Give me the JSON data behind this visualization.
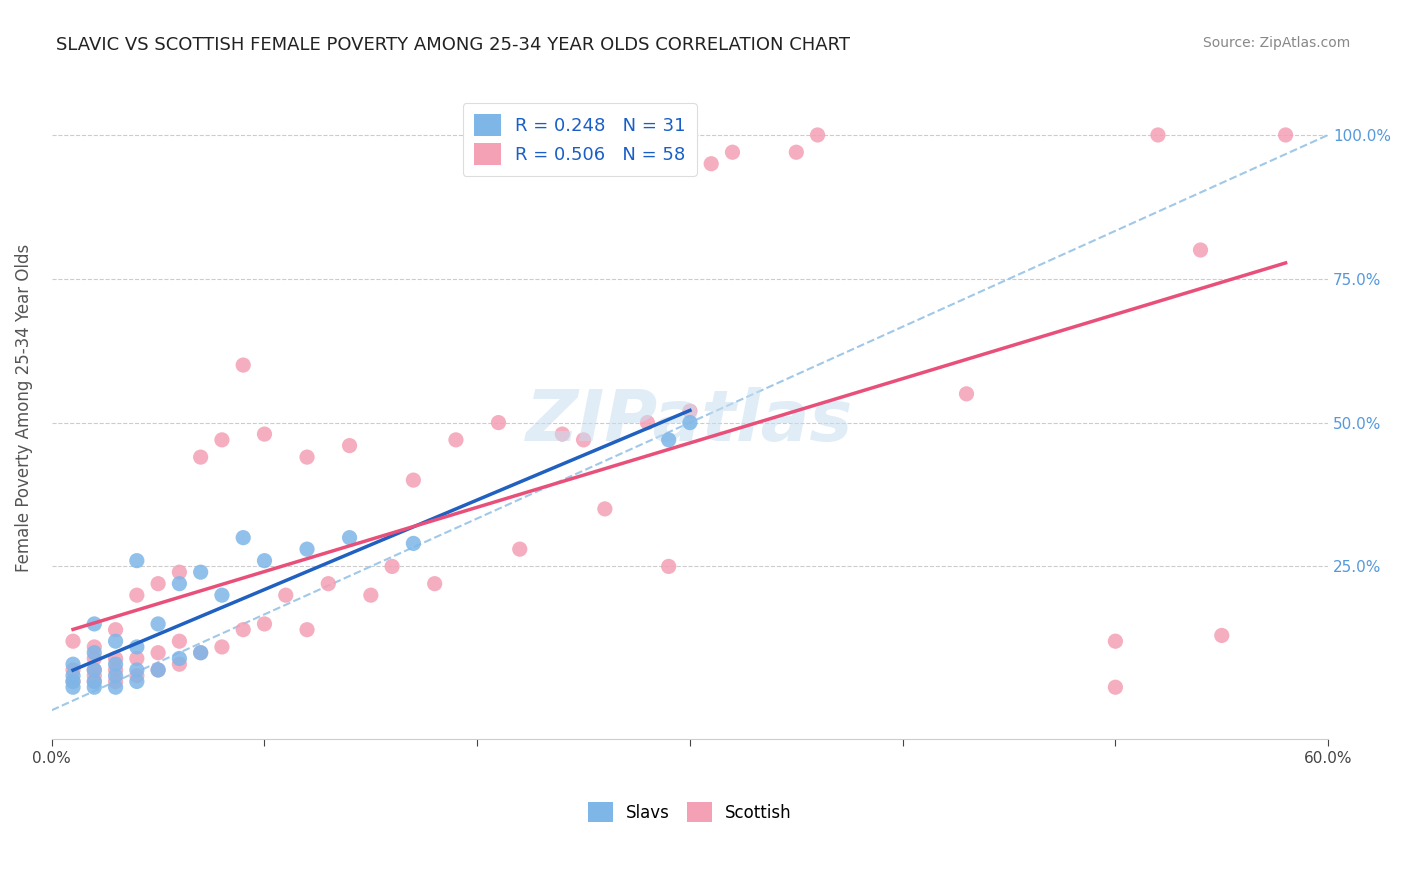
{
  "title": "SLAVIC VS SCOTTISH FEMALE POVERTY AMONG 25-34 YEAR OLDS CORRELATION CHART",
  "source": "Source: ZipAtlas.com",
  "ylabel": "Female Poverty Among 25-34 Year Olds",
  "xlim": [
    0.0,
    0.6
  ],
  "ylim": [
    -0.05,
    1.1
  ],
  "xticks": [
    0.0,
    0.1,
    0.2,
    0.3,
    0.4,
    0.5,
    0.6
  ],
  "xticklabels": [
    "0.0%",
    "",
    "",
    "",
    "",
    "",
    "60.0%"
  ],
  "yticks": [
    0.0,
    0.25,
    0.5,
    0.75,
    1.0
  ],
  "right_yticks": [
    0.0,
    0.25,
    0.5,
    0.75,
    1.0
  ],
  "right_yticklabels": [
    "",
    "25.0%",
    "50.0%",
    "75.0%",
    "100.0%"
  ],
  "slavs_color": "#7eb6e8",
  "scottish_color": "#f4a0b5",
  "slavs_line_color": "#2060c0",
  "scottish_line_color": "#e8507a",
  "dashed_line_color": "#a0c8e8",
  "legend_text_color": "#1a5fc8",
  "slavs_R": 0.248,
  "slavs_N": 31,
  "scottish_R": 0.506,
  "scottish_N": 58,
  "watermark": "ZIPatlas",
  "slavs_x": [
    0.01,
    0.01,
    0.01,
    0.01,
    0.02,
    0.02,
    0.02,
    0.02,
    0.02,
    0.03,
    0.03,
    0.03,
    0.03,
    0.04,
    0.04,
    0.04,
    0.04,
    0.05,
    0.05,
    0.06,
    0.06,
    0.07,
    0.07,
    0.08,
    0.09,
    0.1,
    0.12,
    0.14,
    0.17,
    0.29,
    0.3
  ],
  "slavs_y": [
    0.04,
    0.05,
    0.06,
    0.08,
    0.04,
    0.05,
    0.07,
    0.1,
    0.15,
    0.04,
    0.06,
    0.08,
    0.12,
    0.05,
    0.07,
    0.11,
    0.26,
    0.07,
    0.15,
    0.09,
    0.22,
    0.1,
    0.24,
    0.2,
    0.3,
    0.26,
    0.28,
    0.3,
    0.29,
    0.47,
    0.5
  ],
  "scottish_x": [
    0.01,
    0.01,
    0.01,
    0.02,
    0.02,
    0.02,
    0.02,
    0.02,
    0.03,
    0.03,
    0.03,
    0.03,
    0.04,
    0.04,
    0.04,
    0.05,
    0.05,
    0.05,
    0.06,
    0.06,
    0.06,
    0.07,
    0.07,
    0.08,
    0.08,
    0.09,
    0.09,
    0.1,
    0.1,
    0.11,
    0.12,
    0.12,
    0.13,
    0.14,
    0.15,
    0.16,
    0.17,
    0.18,
    0.19,
    0.21,
    0.22,
    0.24,
    0.25,
    0.26,
    0.28,
    0.29,
    0.3,
    0.31,
    0.32,
    0.35,
    0.36,
    0.43,
    0.5,
    0.5,
    0.52,
    0.54,
    0.55,
    0.58
  ],
  "scottish_y": [
    0.05,
    0.07,
    0.12,
    0.05,
    0.06,
    0.07,
    0.09,
    0.11,
    0.05,
    0.07,
    0.09,
    0.14,
    0.06,
    0.09,
    0.2,
    0.07,
    0.1,
    0.22,
    0.08,
    0.12,
    0.24,
    0.1,
    0.44,
    0.11,
    0.47,
    0.14,
    0.6,
    0.15,
    0.48,
    0.2,
    0.14,
    0.44,
    0.22,
    0.46,
    0.2,
    0.25,
    0.4,
    0.22,
    0.47,
    0.5,
    0.28,
    0.48,
    0.47,
    0.35,
    0.5,
    0.25,
    0.52,
    0.95,
    0.97,
    0.97,
    1.0,
    0.55,
    0.12,
    0.04,
    1.0,
    0.8,
    0.13,
    1.0
  ]
}
